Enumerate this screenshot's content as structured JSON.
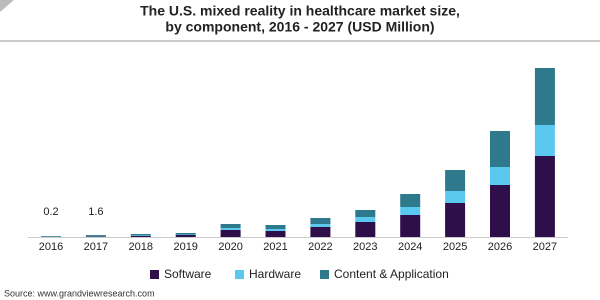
{
  "chart_data": {
    "type": "stacked_bar",
    "title_lines": [
      "The U.S. mixed reality  in healthcare market size,",
      "by component, 2016 - 2027 (USD Million)"
    ],
    "categories": [
      "2016",
      "2017",
      "2018",
      "2019",
      "2020",
      "2021",
      "2022",
      "2023",
      "2024",
      "2025",
      "2026",
      "2027"
    ],
    "series": [
      {
        "name": "Software",
        "color": "#2e0f4a",
        "values": [
          0.05,
          0.5,
          0.8,
          1.6,
          5.6,
          4.8,
          8,
          12,
          17.6,
          27.2,
          41.6,
          64.8
        ]
      },
      {
        "name": "Hardware",
        "color": "#5bc8f0",
        "values": [
          0.05,
          0.4,
          0.5,
          0.4,
          1.6,
          1.6,
          2.4,
          4,
          6.4,
          9.6,
          14.4,
          24.8
        ]
      },
      {
        "name": "Content & Application",
        "color": "#2e7a8c",
        "values": [
          0.1,
          0.7,
          1.1,
          1.2,
          3.2,
          3.2,
          4.8,
          5.6,
          10.4,
          16.8,
          28.8,
          45.6
        ]
      }
    ],
    "data_labels": [
      0.2,
      1.6,
      null,
      null,
      null,
      null,
      null,
      null,
      null,
      null,
      null,
      null
    ],
    "source": "Source: www.grandviewresearch.com"
  }
}
